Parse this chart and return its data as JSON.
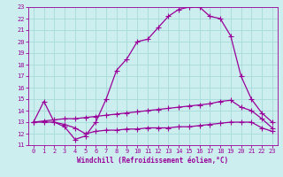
{
  "xlabel": "Windchill (Refroidissement éolien,°C)",
  "hours": [
    0,
    1,
    2,
    3,
    4,
    5,
    6,
    7,
    8,
    9,
    10,
    11,
    12,
    13,
    14,
    15,
    16,
    17,
    18,
    19,
    20,
    21,
    22,
    23
  ],
  "line1": [
    13,
    14.8,
    13,
    12.6,
    11.5,
    11.8,
    13.0,
    15.0,
    17.5,
    18.5,
    20.0,
    20.2,
    21.2,
    22.2,
    22.8,
    23.0,
    23.0,
    22.2,
    22.0,
    20.5,
    17.0,
    15.0,
    13.8,
    13.0
  ],
  "line2": [
    13,
    13.0,
    13.0,
    12.8,
    12.5,
    12.0,
    12.2,
    12.3,
    12.3,
    12.4,
    12.4,
    12.5,
    12.5,
    12.5,
    12.6,
    12.6,
    12.7,
    12.8,
    12.9,
    13.0,
    13.0,
    13.0,
    12.5,
    12.2
  ],
  "line3": [
    13,
    13.1,
    13.2,
    13.3,
    13.3,
    13.4,
    13.5,
    13.6,
    13.7,
    13.8,
    13.9,
    14.0,
    14.1,
    14.2,
    14.3,
    14.4,
    14.5,
    14.6,
    14.8,
    14.9,
    14.3,
    14.0,
    13.3,
    12.5
  ],
  "line_color": "#990099",
  "bg_color": "#CCEEEE",
  "grid_color": "#AADDDD",
  "ylim": [
    11,
    23
  ],
  "xlim": [
    -0.5,
    23.5
  ],
  "yticks": [
    11,
    12,
    13,
    14,
    15,
    16,
    17,
    18,
    19,
    20,
    21,
    22,
    23
  ],
  "xticks": [
    0,
    1,
    2,
    3,
    4,
    5,
    6,
    7,
    8,
    9,
    10,
    11,
    12,
    13,
    14,
    15,
    16,
    17,
    18,
    19,
    20,
    21,
    22,
    23
  ],
  "tick_fontsize": 5,
  "xlabel_fontsize": 5.5,
  "marker": "+",
  "markersize": 4,
  "linewidth": 0.9
}
